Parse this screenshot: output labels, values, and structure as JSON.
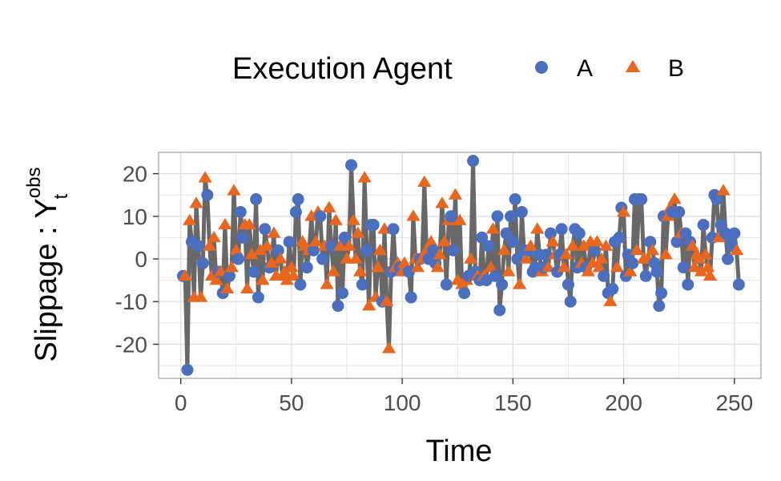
{
  "chart_data": {
    "type": "scatter",
    "xlabel": "Time",
    "ylabel": {
      "main": "Slippage : ",
      "symbol": "Y",
      "sup": "obs",
      "sub": "t"
    },
    "xlim": [
      -10,
      262
    ],
    "ylim": [
      -28,
      25
    ],
    "x_ticks": [
      0,
      50,
      100,
      150,
      200,
      250
    ],
    "y_ticks": [
      -20,
      -10,
      0,
      10,
      20
    ],
    "grid": true,
    "legend": {
      "title": "Execution Agent",
      "position": "top"
    },
    "line_color": "#4d4d4d",
    "series": [
      {
        "name": "A",
        "marker": "circle",
        "color": "#4a6fbf"
      },
      {
        "name": "B",
        "marker": "triangle",
        "color": "#e8661e"
      }
    ],
    "points": [
      [
        1,
        -4,
        "A"
      ],
      [
        2,
        -4,
        "B"
      ],
      [
        3,
        -26,
        "A"
      ],
      [
        4,
        9,
        "B"
      ],
      [
        5,
        4,
        "A"
      ],
      [
        6,
        -9,
        "B"
      ],
      [
        7,
        13,
        "B"
      ],
      [
        8,
        3,
        "A"
      ],
      [
        9,
        -9,
        "B"
      ],
      [
        10,
        -1,
        "A"
      ],
      [
        11,
        19,
        "B"
      ],
      [
        12,
        15,
        "A"
      ],
      [
        13,
        3,
        "B"
      ],
      [
        14,
        -4,
        "B"
      ],
      [
        15,
        5,
        "B"
      ],
      [
        16,
        -5,
        "B"
      ],
      [
        17,
        -3,
        "A"
      ],
      [
        18,
        -3,
        "B"
      ],
      [
        19,
        -8,
        "A"
      ],
      [
        20,
        8,
        "B"
      ],
      [
        21,
        -7,
        "B"
      ],
      [
        22,
        -4,
        "A"
      ],
      [
        23,
        -2,
        "B"
      ],
      [
        24,
        16,
        "B"
      ],
      [
        25,
        2,
        "B"
      ],
      [
        26,
        0,
        "A"
      ],
      [
        27,
        11,
        "A"
      ],
      [
        28,
        5,
        "A"
      ],
      [
        29,
        8,
        "B"
      ],
      [
        30,
        -7,
        "B"
      ],
      [
        31,
        8,
        "B"
      ],
      [
        32,
        1,
        "B"
      ],
      [
        33,
        -3,
        "A"
      ],
      [
        34,
        14,
        "A"
      ],
      [
        35,
        -9,
        "A"
      ],
      [
        36,
        2,
        "B"
      ],
      [
        37,
        -5,
        "B"
      ],
      [
        38,
        7,
        "A"
      ],
      [
        39,
        3,
        "B"
      ],
      [
        40,
        -2,
        "A"
      ],
      [
        41,
        -1,
        "B"
      ],
      [
        42,
        6,
        "B"
      ],
      [
        43,
        -4,
        "B"
      ],
      [
        44,
        2,
        "A"
      ],
      [
        45,
        0,
        "B"
      ],
      [
        46,
        -4,
        "B"
      ],
      [
        47,
        -3,
        "B"
      ],
      [
        48,
        -5,
        "B"
      ],
      [
        49,
        4,
        "A"
      ],
      [
        50,
        -2,
        "B"
      ],
      [
        51,
        -4,
        "B"
      ],
      [
        52,
        11,
        "A"
      ],
      [
        53,
        14,
        "A"
      ],
      [
        54,
        -6,
        "A"
      ],
      [
        55,
        4,
        "B"
      ],
      [
        56,
        3,
        "B"
      ],
      [
        57,
        -2,
        "A"
      ],
      [
        58,
        2,
        "B"
      ],
      [
        59,
        10,
        "B"
      ],
      [
        60,
        2,
        "A"
      ],
      [
        61,
        4,
        "B"
      ],
      [
        62,
        11,
        "B"
      ],
      [
        63,
        10,
        "A"
      ],
      [
        64,
        0,
        "A"
      ],
      [
        65,
        3,
        "B"
      ],
      [
        66,
        -6,
        "B"
      ],
      [
        67,
        12,
        "B"
      ],
      [
        68,
        3,
        "A"
      ],
      [
        69,
        -3,
        "B"
      ],
      [
        70,
        9,
        "B"
      ],
      [
        71,
        -11,
        "A"
      ],
      [
        72,
        3,
        "B"
      ],
      [
        73,
        -8,
        "A"
      ],
      [
        74,
        5,
        "A"
      ],
      [
        75,
        0,
        "B"
      ],
      [
        76,
        3,
        "B"
      ],
      [
        77,
        22,
        "A"
      ],
      [
        78,
        9,
        "B"
      ],
      [
        79,
        0,
        "B"
      ],
      [
        80,
        6,
        "B"
      ],
      [
        81,
        -3,
        "B"
      ],
      [
        82,
        -6,
        "A"
      ],
      [
        83,
        19,
        "B"
      ],
      [
        84,
        2,
        "A"
      ],
      [
        85,
        -11,
        "B"
      ],
      [
        86,
        8,
        "A"
      ],
      [
        87,
        8,
        "A"
      ],
      [
        88,
        -9,
        "B"
      ],
      [
        89,
        -2,
        "B"
      ],
      [
        90,
        2,
        "B"
      ],
      [
        91,
        -10,
        "A"
      ],
      [
        92,
        7,
        "B"
      ],
      [
        93,
        -10,
        "B"
      ],
      [
        94,
        -21,
        "B"
      ],
      [
        95,
        -3,
        "A"
      ],
      [
        96,
        7,
        "A"
      ],
      [
        97,
        -2,
        "B"
      ],
      [
        98,
        -1,
        "B"
      ],
      [
        99,
        -2,
        "A"
      ],
      [
        100,
        -3,
        "B"
      ],
      [
        101,
        -1,
        "B"
      ],
      [
        102,
        -3,
        "B"
      ],
      [
        103,
        -3,
        "A"
      ],
      [
        104,
        -9,
        "A"
      ],
      [
        105,
        10,
        "B"
      ],
      [
        106,
        0,
        "B"
      ],
      [
        107,
        -2,
        "B"
      ],
      [
        108,
        0,
        "A"
      ],
      [
        109,
        0,
        "B"
      ],
      [
        110,
        18,
        "B"
      ],
      [
        111,
        2,
        "B"
      ],
      [
        112,
        0,
        "A"
      ],
      [
        113,
        4,
        "B"
      ],
      [
        114,
        2,
        "A"
      ],
      [
        115,
        -1,
        "A"
      ],
      [
        116,
        -2,
        "B"
      ],
      [
        117,
        1,
        "B"
      ],
      [
        118,
        13,
        "B"
      ],
      [
        119,
        4,
        "B"
      ],
      [
        120,
        -6,
        "A"
      ],
      [
        121,
        9,
        "B"
      ],
      [
        122,
        10,
        "A"
      ],
      [
        123,
        2,
        "A"
      ],
      [
        124,
        15,
        "B"
      ],
      [
        125,
        -5,
        "B"
      ],
      [
        126,
        9,
        "B"
      ],
      [
        127,
        -6,
        "B"
      ],
      [
        128,
        -8,
        "A"
      ],
      [
        129,
        -5,
        "B"
      ],
      [
        130,
        -4,
        "A"
      ],
      [
        131,
        0,
        "B"
      ],
      [
        132,
        23,
        "A"
      ],
      [
        133,
        -3,
        "A"
      ],
      [
        134,
        -4,
        "B"
      ],
      [
        135,
        -5,
        "A"
      ],
      [
        136,
        5,
        "A"
      ],
      [
        137,
        -4,
        "B"
      ],
      [
        138,
        -5,
        "A"
      ],
      [
        139,
        3,
        "A"
      ],
      [
        140,
        -2,
        "B"
      ],
      [
        141,
        7,
        "B"
      ],
      [
        142,
        -4,
        "A"
      ],
      [
        143,
        10,
        "A"
      ],
      [
        144,
        -12,
        "A"
      ],
      [
        145,
        -6,
        "A"
      ],
      [
        146,
        2,
        "B"
      ],
      [
        147,
        6,
        "A"
      ],
      [
        148,
        -3,
        "B"
      ],
      [
        149,
        10,
        "A"
      ],
      [
        150,
        4,
        "A"
      ],
      [
        151,
        14,
        "A"
      ],
      [
        152,
        0,
        "A"
      ],
      [
        153,
        -6,
        "B"
      ],
      [
        154,
        11,
        "A"
      ],
      [
        155,
        2,
        "A"
      ],
      [
        156,
        0,
        "B"
      ],
      [
        157,
        2,
        "A"
      ],
      [
        158,
        3,
        "B"
      ],
      [
        159,
        -3,
        "A"
      ],
      [
        160,
        -2,
        "A"
      ],
      [
        161,
        7,
        "B"
      ],
      [
        162,
        1,
        "A"
      ],
      [
        163,
        -3,
        "B"
      ],
      [
        164,
        -2,
        "A"
      ],
      [
        165,
        1,
        "A"
      ],
      [
        166,
        -2,
        "B"
      ],
      [
        167,
        6,
        "A"
      ],
      [
        168,
        4,
        "B"
      ],
      [
        169,
        1,
        "B"
      ],
      [
        170,
        -3,
        "A"
      ],
      [
        171,
        1,
        "A"
      ],
      [
        172,
        7,
        "A"
      ],
      [
        173,
        -2,
        "B"
      ],
      [
        174,
        1,
        "B"
      ],
      [
        175,
        -6,
        "A"
      ],
      [
        176,
        -10,
        "A"
      ],
      [
        177,
        3,
        "B"
      ],
      [
        178,
        7,
        "A"
      ],
      [
        179,
        -2,
        "A"
      ],
      [
        180,
        6,
        "A"
      ],
      [
        181,
        -1,
        "B"
      ],
      [
        182,
        3,
        "B"
      ],
      [
        183,
        -2,
        "A"
      ],
      [
        184,
        -3,
        "B"
      ],
      [
        185,
        4,
        "B"
      ],
      [
        186,
        -1,
        "B"
      ],
      [
        187,
        2,
        "A"
      ],
      [
        188,
        4,
        "B"
      ],
      [
        189,
        -2,
        "B"
      ],
      [
        190,
        0,
        "B"
      ],
      [
        191,
        -4,
        "A"
      ],
      [
        192,
        3,
        "B"
      ],
      [
        193,
        -8,
        "A"
      ],
      [
        194,
        -10,
        "B"
      ],
      [
        195,
        -7,
        "A"
      ],
      [
        196,
        4,
        "A"
      ],
      [
        197,
        -2,
        "B"
      ],
      [
        198,
        5,
        "A"
      ],
      [
        199,
        12,
        "A"
      ],
      [
        200,
        11,
        "B"
      ],
      [
        201,
        -4,
        "A"
      ],
      [
        202,
        1,
        "A"
      ],
      [
        203,
        -3,
        "B"
      ],
      [
        204,
        -1,
        "A"
      ],
      [
        205,
        14,
        "A"
      ],
      [
        206,
        2,
        "B"
      ],
      [
        207,
        14,
        "A"
      ],
      [
        208,
        14,
        "A"
      ],
      [
        209,
        0,
        "B"
      ],
      [
        210,
        -4,
        "A"
      ],
      [
        211,
        0,
        "B"
      ],
      [
        212,
        4,
        "A"
      ],
      [
        213,
        2,
        "B"
      ],
      [
        214,
        -1,
        "A"
      ],
      [
        215,
        -3,
        "A"
      ],
      [
        216,
        -11,
        "A"
      ],
      [
        217,
        -8,
        "A"
      ],
      [
        218,
        10,
        "A"
      ],
      [
        219,
        1,
        "B"
      ],
      [
        220,
        10,
        "B"
      ],
      [
        221,
        12,
        "B"
      ],
      [
        222,
        11,
        "A"
      ],
      [
        223,
        14,
        "B"
      ],
      [
        224,
        4,
        "A"
      ],
      [
        225,
        11,
        "A"
      ],
      [
        226,
        6,
        "B"
      ],
      [
        227,
        -2,
        "A"
      ],
      [
        228,
        6,
        "A"
      ],
      [
        229,
        -6,
        "A"
      ],
      [
        230,
        4,
        "A"
      ],
      [
        231,
        3,
        "B"
      ],
      [
        232,
        -2,
        "B"
      ],
      [
        233,
        1,
        "B"
      ],
      [
        234,
        0,
        "B"
      ],
      [
        235,
        -3,
        "B"
      ],
      [
        236,
        8,
        "A"
      ],
      [
        237,
        1,
        "B"
      ],
      [
        238,
        -2,
        "B"
      ],
      [
        239,
        -4,
        "B"
      ],
      [
        240,
        5,
        "A"
      ],
      [
        241,
        15,
        "A"
      ],
      [
        242,
        14,
        "A"
      ],
      [
        243,
        5,
        "B"
      ],
      [
        244,
        8,
        "A"
      ],
      [
        245,
        16,
        "B"
      ],
      [
        246,
        6,
        "A"
      ],
      [
        247,
        0,
        "A"
      ],
      [
        248,
        5,
        "A"
      ],
      [
        249,
        3,
        "A"
      ],
      [
        250,
        6,
        "A"
      ],
      [
        251,
        2,
        "B"
      ],
      [
        252,
        -6,
        "A"
      ]
    ]
  }
}
